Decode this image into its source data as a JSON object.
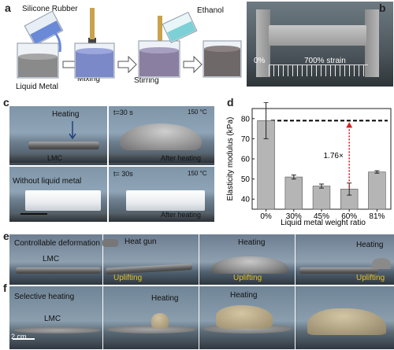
{
  "panels": {
    "a": {
      "label": "a",
      "silicone": "Silicone Rubber",
      "liquid_metal": "Liquid Metal",
      "mixing": "Mixing",
      "ethanol": "Ethanol",
      "stirring": "Stirring"
    },
    "b": {
      "label": "b",
      "left_strain": "0%",
      "right_strain": "700% strain"
    },
    "c": {
      "label": "c",
      "heating": "Heating",
      "lmc": "LMC",
      "time_top": "t=30 s",
      "temp_top": "150 °C",
      "after_top": "After heating",
      "without": "Without liquid metal",
      "time_bottom": "t= 30s",
      "temp_bottom": "150 °C",
      "after_bottom": "After heating"
    },
    "d": {
      "label": "d"
    },
    "e": {
      "label": "e",
      "controllable": "Controllable deformation",
      "lmc": "LMC",
      "heat_gun": "Heat gun",
      "heating_2": "Heating",
      "heating_3": "Heating",
      "uplifting_1": "Uplifting",
      "uplifting_2": "Uplifting",
      "uplifting_3": "Uplifting"
    },
    "f": {
      "label": "f",
      "selective": "Selective heating",
      "lmc": "LMC",
      "heating_1": "Heating",
      "heating_2": "Heating",
      "scale": "2 cm"
    }
  },
  "chart_data": {
    "type": "bar",
    "categories": [
      "0%",
      "30%",
      "45%",
      "60%",
      "81%"
    ],
    "values": [
      79,
      51,
      46.5,
      45,
      53.5
    ],
    "errors": [
      9,
      1,
      1,
      3,
      0.6
    ],
    "xlabel": "Liquid metal weight ratio",
    "ylabel": "Elasticity modulus (kPa)",
    "ylim": [
      35,
      85
    ],
    "yticks": [
      "40",
      "50",
      "60",
      "70",
      "80"
    ],
    "reference_value": 79,
    "annotation": "1.76×"
  }
}
